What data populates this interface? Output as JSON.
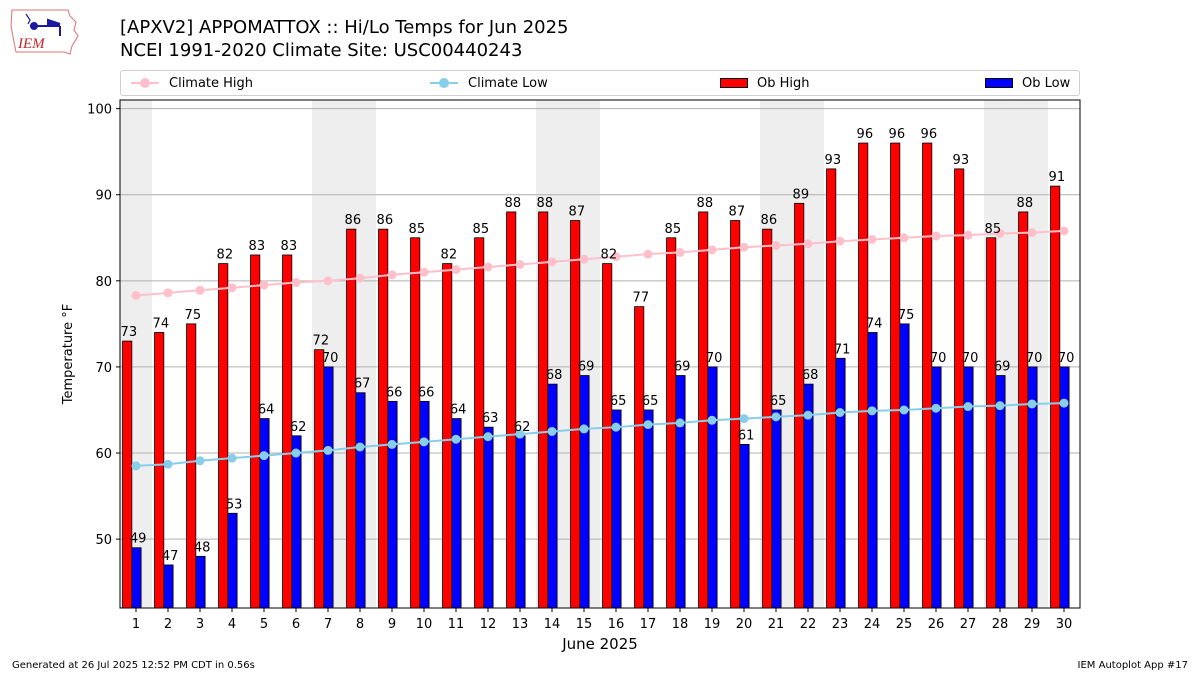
{
  "header": {
    "logo_text": "IEM",
    "title_line1": "[APXV2] APPOMATTOX :: Hi/Lo Temps for Jun 2025",
    "title_line2": "NCEI 1991-2020 Climate Site: USC00440243"
  },
  "legend": {
    "items": [
      {
        "label": "Climate High",
        "kind": "line",
        "color": "#ffc0cb"
      },
      {
        "label": "Climate Low",
        "kind": "line",
        "color": "#87ceeb"
      },
      {
        "label": "Ob High",
        "kind": "bar",
        "color": "#ff0000"
      },
      {
        "label": "Ob Low",
        "kind": "bar",
        "color": "#0000ff"
      }
    ]
  },
  "footer": {
    "generated": "Generated at 26 Jul 2025 12:52 PM CDT in 0.56s",
    "app": "IEM Autoplot App #17"
  },
  "chart_data": {
    "type": "bar",
    "title": "[APXV2] APPOMATTOX :: Hi/Lo Temps for Jun 2025",
    "subtitle": "NCEI 1991-2020 Climate Site: USC00440243",
    "xlabel": "June 2025",
    "ylabel": "Temperature °F",
    "ylim": [
      42,
      101
    ],
    "xlim": [
      0.5,
      30.5
    ],
    "yticks": [
      50,
      60,
      70,
      80,
      90,
      100
    ],
    "grid": "y",
    "legend_position": "top",
    "categories": [
      "1",
      "2",
      "3",
      "4",
      "5",
      "6",
      "7",
      "8",
      "9",
      "10",
      "11",
      "12",
      "13",
      "14",
      "15",
      "16",
      "17",
      "18",
      "19",
      "20",
      "21",
      "22",
      "23",
      "24",
      "25",
      "26",
      "27",
      "28",
      "29",
      "30"
    ],
    "weekend_shaded_days": [
      1,
      7,
      8,
      14,
      15,
      21,
      22,
      28,
      29
    ],
    "weekend_shade_color": "#eeeeee",
    "series": [
      {
        "name": "Ob High",
        "type": "bar",
        "color": "#ff0000",
        "values": [
          73,
          74,
          75,
          82,
          83,
          83,
          72,
          86,
          86,
          85,
          82,
          85,
          88,
          88,
          87,
          82,
          77,
          85,
          88,
          87,
          86,
          89,
          93,
          96,
          96,
          96,
          93,
          85,
          88,
          91
        ]
      },
      {
        "name": "Ob Low",
        "type": "bar",
        "color": "#0000ff",
        "values": [
          49,
          47,
          48,
          53,
          64,
          62,
          70,
          67,
          66,
          66,
          64,
          63,
          62,
          68,
          69,
          65,
          65,
          69,
          70,
          61,
          65,
          68,
          71,
          74,
          75,
          70,
          70,
          69,
          70,
          70
        ]
      },
      {
        "name": "Climate High",
        "type": "line",
        "color": "#ffc0cb",
        "values": [
          78.3,
          78.6,
          78.9,
          79.2,
          79.5,
          79.8,
          80.0,
          80.3,
          80.7,
          81.0,
          81.3,
          81.6,
          81.9,
          82.2,
          82.5,
          82.8,
          83.1,
          83.3,
          83.6,
          83.9,
          84.1,
          84.3,
          84.6,
          84.8,
          85.0,
          85.2,
          85.3,
          85.5,
          85.6,
          85.8
        ]
      },
      {
        "name": "Climate Low",
        "type": "line",
        "color": "#87ceeb",
        "values": [
          58.5,
          58.7,
          59.1,
          59.4,
          59.7,
          60.0,
          60.3,
          60.7,
          61.0,
          61.3,
          61.6,
          61.9,
          62.2,
          62.5,
          62.8,
          63.0,
          63.3,
          63.5,
          63.8,
          64.0,
          64.2,
          64.4,
          64.7,
          64.9,
          65.0,
          65.2,
          65.4,
          65.5,
          65.7,
          65.8
        ]
      }
    ]
  }
}
